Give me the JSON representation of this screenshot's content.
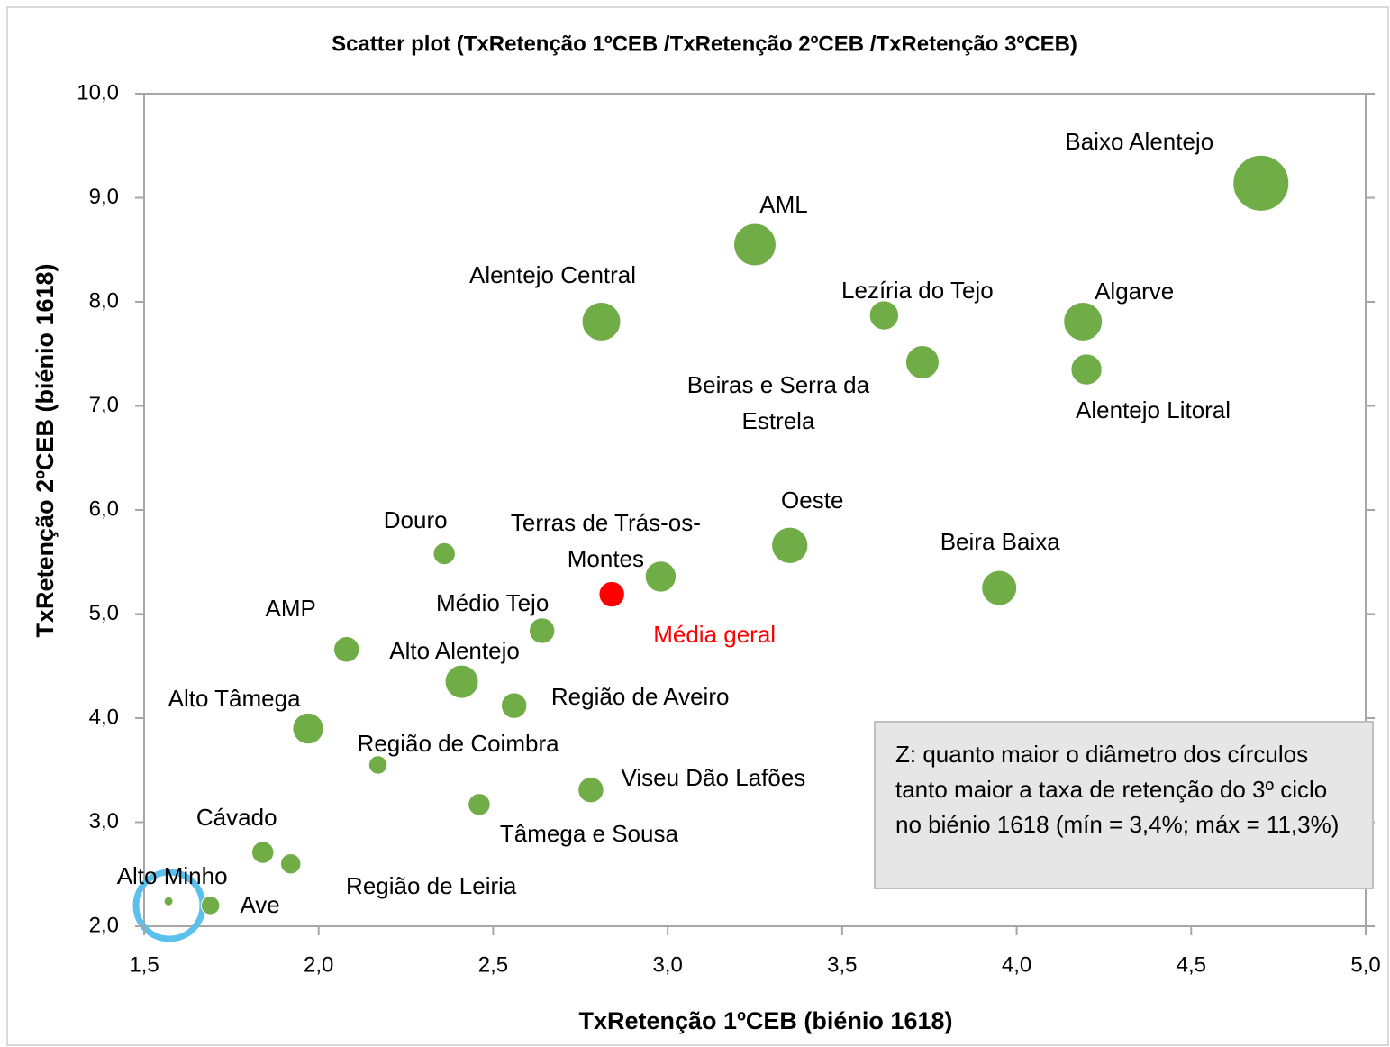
{
  "chart_data": {
    "type": "bubble",
    "title": "Scatter plot (TxRetenção 1ºCEB /TxRetenção 2ºCEB /TxRetenção 3ºCEB)",
    "xlabel": "TxRetenção 1ºCEB (biénio 1618)",
    "ylabel": "TxRetenção 2ºCEB (biénio 1618)",
    "xlim": [
      1.5,
      5.0
    ],
    "ylim": [
      2.0,
      10.0
    ],
    "xticks": [
      {
        "value": 1.5,
        "label": "1,5"
      },
      {
        "value": 2.0,
        "label": "2,0"
      },
      {
        "value": 2.5,
        "label": "2,5"
      },
      {
        "value": 3.0,
        "label": "3,0"
      },
      {
        "value": 3.5,
        "label": "3,5"
      },
      {
        "value": 4.0,
        "label": "4,0"
      },
      {
        "value": 4.5,
        "label": "4,5"
      },
      {
        "value": 5.0,
        "label": "5,0"
      }
    ],
    "yticks": [
      {
        "value": 2.0,
        "label": "2,0"
      },
      {
        "value": 3.0,
        "label": "3,0"
      },
      {
        "value": 4.0,
        "label": "4,0"
      },
      {
        "value": 5.0,
        "label": "5,0"
      },
      {
        "value": 6.0,
        "label": "6,0"
      },
      {
        "value": 7.0,
        "label": "7,0"
      },
      {
        "value": 8.0,
        "label": "8,0"
      },
      {
        "value": 9.0,
        "label": "9,0"
      },
      {
        "value": 10.0,
        "label": "10,0"
      }
    ],
    "size_range": [
      3.4,
      11.3
    ],
    "annotation": "Z: quanto maior o diâmetro dos círculos tanto maior a taxa de retenção do 3º ciclo no biénio 1618 (mín = 3,4%; máx = 11,3%)",
    "points": [
      {
        "name": "Baixo Alentejo",
        "x": 4.7,
        "y": 9.14,
        "size": 11.3,
        "color": "#70ad47"
      },
      {
        "name": "AML",
        "x": 3.25,
        "y": 8.55,
        "size": 9.0,
        "color": "#70ad47"
      },
      {
        "name": "Alentejo Central",
        "x": 2.81,
        "y": 7.81,
        "size": 8.4,
        "color": "#70ad47"
      },
      {
        "name": "Lezíria do Tejo",
        "x": 3.62,
        "y": 7.87,
        "size": 6.8,
        "color": "#70ad47"
      },
      {
        "name": "Algarve",
        "x": 4.19,
        "y": 7.81,
        "size": 8.4,
        "color": "#70ad47"
      },
      {
        "name": "Beiras e Serra da Estrela",
        "x": 3.73,
        "y": 7.42,
        "size": 7.5,
        "color": "#70ad47"
      },
      {
        "name": "Alentejo Litoral",
        "x": 4.2,
        "y": 7.35,
        "size": 7.1,
        "color": "#70ad47"
      },
      {
        "name": "Oeste",
        "x": 3.35,
        "y": 5.66,
        "size": 8.0,
        "color": "#70ad47"
      },
      {
        "name": "Beira Baixa",
        "x": 3.95,
        "y": 5.25,
        "size": 7.8,
        "color": "#70ad47"
      },
      {
        "name": "Douro",
        "x": 2.36,
        "y": 5.58,
        "size": 5.6,
        "color": "#70ad47"
      },
      {
        "name": "Terras de Trás-os-Montes",
        "x": 2.98,
        "y": 5.36,
        "size": 7.1,
        "color": "#70ad47"
      },
      {
        "name": "Média geral",
        "x": 2.84,
        "y": 5.19,
        "size": 6.2,
        "color": "#ff0000"
      },
      {
        "name": "Médio Tejo",
        "x": 2.64,
        "y": 4.84,
        "size": 6.2,
        "color": "#70ad47"
      },
      {
        "name": "AMP",
        "x": 2.08,
        "y": 4.66,
        "size": 6.2,
        "color": "#70ad47"
      },
      {
        "name": "Alto Alentejo",
        "x": 2.41,
        "y": 4.35,
        "size": 7.5,
        "color": "#70ad47"
      },
      {
        "name": "Região de Aveiro",
        "x": 2.56,
        "y": 4.12,
        "size": 6.2,
        "color": "#70ad47"
      },
      {
        "name": "Alto Tâmega",
        "x": 1.97,
        "y": 3.9,
        "size": 7.1,
        "color": "#70ad47"
      },
      {
        "name": "Região de Coimbra",
        "x": 2.17,
        "y": 3.55,
        "size": 5.0,
        "color": "#70ad47"
      },
      {
        "name": "Viseu Dão Lafões",
        "x": 2.78,
        "y": 3.31,
        "size": 6.2,
        "color": "#70ad47"
      },
      {
        "name": "Tâmega e Sousa",
        "x": 2.46,
        "y": 3.17,
        "size": 5.6,
        "color": "#70ad47"
      },
      {
        "name": "Cávado",
        "x": 1.84,
        "y": 2.71,
        "size": 5.6,
        "color": "#70ad47"
      },
      {
        "name": "Região de Leiria",
        "x": 1.92,
        "y": 2.6,
        "size": 5.3,
        "color": "#70ad47"
      },
      {
        "name": "Alto Minho",
        "x": 1.57,
        "y": 2.24,
        "size": 3.4,
        "color": "#70ad47"
      },
      {
        "name": "Ave",
        "x": 1.69,
        "y": 2.2,
        "size": 5.0,
        "color": "#70ad47"
      }
    ]
  }
}
